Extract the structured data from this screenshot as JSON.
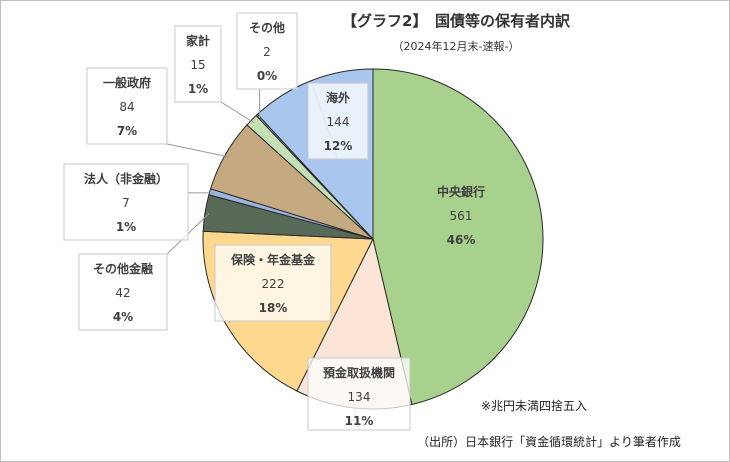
{
  "chart_data": {
    "type": "pie",
    "title": "【グラフ2】　国債等の保有者内訳",
    "subtitle": "（2024年12月末-速報-）",
    "slices": [
      {
        "name": "中央銀行",
        "value": 561,
        "percent": "46%",
        "color": "#a9d18e"
      },
      {
        "name": "預金取扱機関",
        "value": 134,
        "percent": "11%",
        "color": "#fbe5d6"
      },
      {
        "name": "保険・年金基金",
        "value": 222,
        "percent": "18%",
        "color": "#ffd890"
      },
      {
        "name": "その他金融",
        "value": 42,
        "percent": "4%",
        "color": "#576a57"
      },
      {
        "name": "法人（非金融）",
        "value": 7,
        "percent": "1%",
        "color": "#9db6df"
      },
      {
        "name": "一般政府",
        "value": 84,
        "percent": "7%",
        "color": "#c4a981"
      },
      {
        "name": "家計",
        "value": 15,
        "percent": "1%",
        "color": "#c5e0b4"
      },
      {
        "name": "その他",
        "value": 2,
        "percent": "0%",
        "color": "#8faadc"
      },
      {
        "name": "海外",
        "value": 144,
        "percent": "12%",
        "color": "#a9c6ee"
      }
    ],
    "note": "※兆円未満四捨五入",
    "source": "（出所）日本銀行「資金循環統計」より筆者作成"
  }
}
